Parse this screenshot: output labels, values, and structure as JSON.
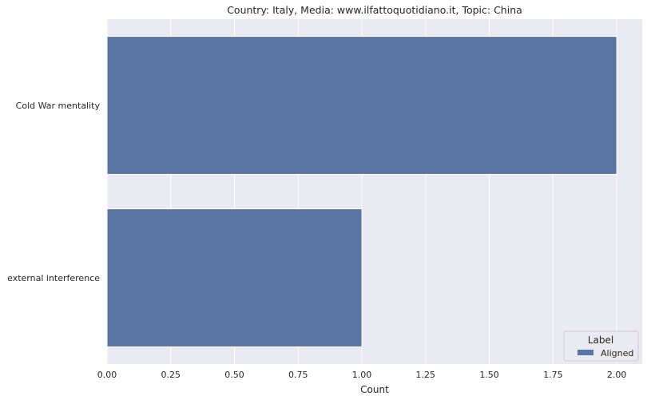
{
  "chart_data": {
    "type": "bar",
    "orientation": "horizontal",
    "title": "Country: Italy, Media: www.ilfattoquotidiano.it, Topic: China",
    "xlabel": "Count",
    "ylabel": "",
    "categories": [
      "Cold War mentality",
      "external interference"
    ],
    "series": [
      {
        "name": "Aligned",
        "values": [
          2,
          1
        ],
        "color": "#5875a4"
      }
    ],
    "xlim": [
      0,
      2.1
    ],
    "xticks": [
      0,
      0.25,
      0.5,
      0.75,
      1.0,
      1.25,
      1.5,
      1.75,
      2.0
    ],
    "xtick_labels": [
      "0.00",
      "0.25",
      "0.50",
      "0.75",
      "1.00",
      "1.25",
      "1.50",
      "1.75",
      "2.00"
    ],
    "grid": true,
    "background": "#eaeaf2",
    "legend": {
      "title": "Label",
      "position": "lower-right"
    }
  }
}
